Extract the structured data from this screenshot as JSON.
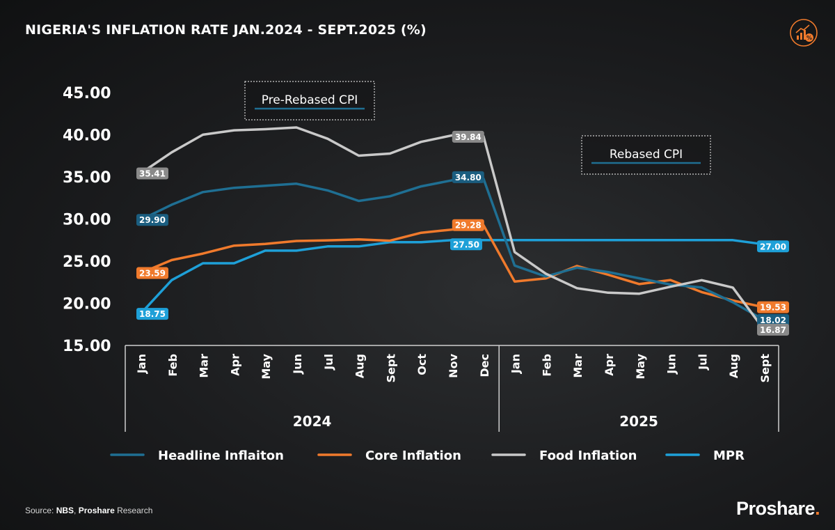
{
  "title": "NIGERIA'S INFLATION RATE JAN.2024 - SEPT.2025 (%)",
  "source": {
    "prefix": "Source: ",
    "bold1": "NBS",
    "mid": ", ",
    "bold2": "Proshare",
    "suffix": " Research"
  },
  "brand": {
    "name": "Proshare",
    "dot": "."
  },
  "logo_icon": "growth-chart-percent-icon",
  "chart_data": {
    "type": "line",
    "ylim": [
      15,
      45
    ],
    "yticks": [
      "45.00",
      "40.00",
      "35.00",
      "30.00",
      "25.00",
      "20.00",
      "15.00"
    ],
    "ytick_values": [
      45,
      40,
      35,
      30,
      25,
      20,
      15
    ],
    "categories": [
      "Jan",
      "Feb",
      "Mar",
      "Apr",
      "May",
      "Jun",
      "Jul",
      "Aug",
      "Sept",
      "Oct",
      "Nov",
      "Dec",
      "Jan",
      "Feb",
      "Mar",
      "Apr",
      "May",
      "Jun",
      "Jul",
      "Aug",
      "Sept"
    ],
    "groups": [
      {
        "label": "2024",
        "count": 12
      },
      {
        "label": "2025",
        "count": 9
      }
    ],
    "annotations": [
      {
        "text": "Pre-Rebased CPI",
        "near": "Apr 2024"
      },
      {
        "text": "Rebased CPI",
        "near": "Mar 2025"
      }
    ],
    "series": [
      {
        "name": "Headline Inflaiton",
        "color": "#1f6f93",
        "values": [
          29.9,
          31.7,
          33.2,
          33.7,
          33.95,
          34.19,
          33.4,
          32.15,
          32.7,
          33.88,
          34.6,
          34.8,
          24.48,
          23.18,
          24.23,
          23.71,
          22.97,
          22.22,
          21.88,
          20.12,
          18.02
        ],
        "labels": [
          {
            "index": 0,
            "text": "29.90"
          },
          {
            "index": 11,
            "text": "34.80"
          },
          {
            "index": 20,
            "text": "18.02"
          }
        ]
      },
      {
        "name": "Core Inflation",
        "color": "#f07a2c",
        "values": [
          23.59,
          25.13,
          25.9,
          26.84,
          27.04,
          27.4,
          27.47,
          27.58,
          27.43,
          28.37,
          28.75,
          29.28,
          22.59,
          22.96,
          24.43,
          23.39,
          22.28,
          22.76,
          21.33,
          20.33,
          19.53
        ],
        "labels": [
          {
            "index": 0,
            "text": "23.59"
          },
          {
            "index": 11,
            "text": "29.28"
          },
          {
            "index": 20,
            "text": "19.53"
          }
        ]
      },
      {
        "name": "Food Inflation",
        "color": "#c9c9c9",
        "values": [
          35.41,
          37.92,
          40.01,
          40.53,
          40.66,
          40.87,
          39.53,
          37.52,
          37.77,
          39.16,
          39.93,
          39.84,
          26.08,
          23.51,
          21.79,
          21.26,
          21.14,
          21.97,
          22.74,
          21.87,
          16.87
        ],
        "labels": [
          {
            "index": 0,
            "text": "35.41"
          },
          {
            "index": 11,
            "text": "39.84"
          },
          {
            "index": 20,
            "text": "16.87"
          }
        ]
      },
      {
        "name": "MPR",
        "color": "#1ea0d8",
        "values": [
          18.75,
          22.75,
          24.75,
          24.75,
          26.25,
          26.25,
          26.75,
          26.75,
          27.25,
          27.25,
          27.5,
          27.5,
          27.5,
          27.5,
          27.5,
          27.5,
          27.5,
          27.5,
          27.5,
          27.5,
          27.0
        ],
        "labels": [
          {
            "index": 0,
            "text": "18.75"
          },
          {
            "index": 10,
            "text": "27.50"
          },
          {
            "index": 20,
            "text": "27.00"
          }
        ]
      }
    ]
  }
}
